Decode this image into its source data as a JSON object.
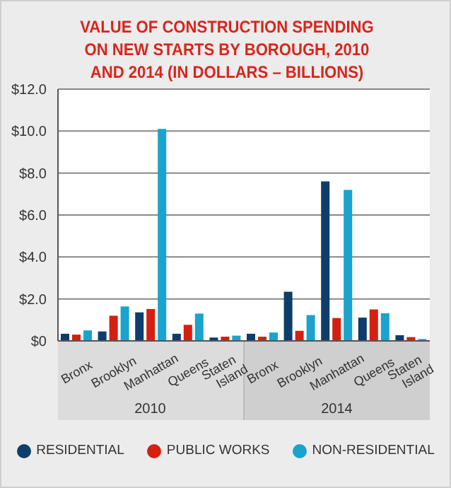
{
  "chart_data": {
    "type": "bar",
    "title": "VALUE OF CONSTRUCTION SPENDING ON NEW STARTS BY BOROUGH, 2010 AND 2014 (IN DOLLARS – BILLIONS)",
    "categories": [
      "Bronx",
      "Brooklyn",
      "Manhattan",
      "Queens",
      "Staten Island",
      "Bronx",
      "Brooklyn",
      "Manhattan",
      "Queens",
      "Staten Island"
    ],
    "series": [
      {
        "name": "RESIDENTIAL",
        "color": "#0d3d6b",
        "values": [
          0.34,
          0.45,
          1.36,
          0.34,
          0.16,
          0.34,
          2.34,
          7.6,
          1.11,
          0.27
        ]
      },
      {
        "name": "PUBLIC WORKS",
        "color": "#d42010",
        "values": [
          0.3,
          1.2,
          1.52,
          0.77,
          0.2,
          0.2,
          0.48,
          1.09,
          1.5,
          0.18
        ]
      },
      {
        "name": "NON-RESIDENTIAL",
        "color": "#1aa3cc",
        "values": [
          0.5,
          1.64,
          10.1,
          1.3,
          0.25,
          0.4,
          1.23,
          7.2,
          1.32,
          0.09
        ]
      }
    ],
    "annotations": [
      "2010",
      "2014"
    ],
    "ylim": [
      0,
      12
    ],
    "yticks": [
      {
        "value": 0,
        "label": "$0"
      },
      {
        "value": 2,
        "label": "$2.0"
      },
      {
        "value": 4,
        "label": "$4.0"
      },
      {
        "value": 6,
        "label": "$6.0"
      },
      {
        "value": 8,
        "label": "$8.0"
      },
      {
        "value": 10,
        "label": "$10.0"
      },
      {
        "value": 12,
        "label": "$12.0"
      }
    ],
    "grid": "y",
    "legend": "bottom"
  }
}
